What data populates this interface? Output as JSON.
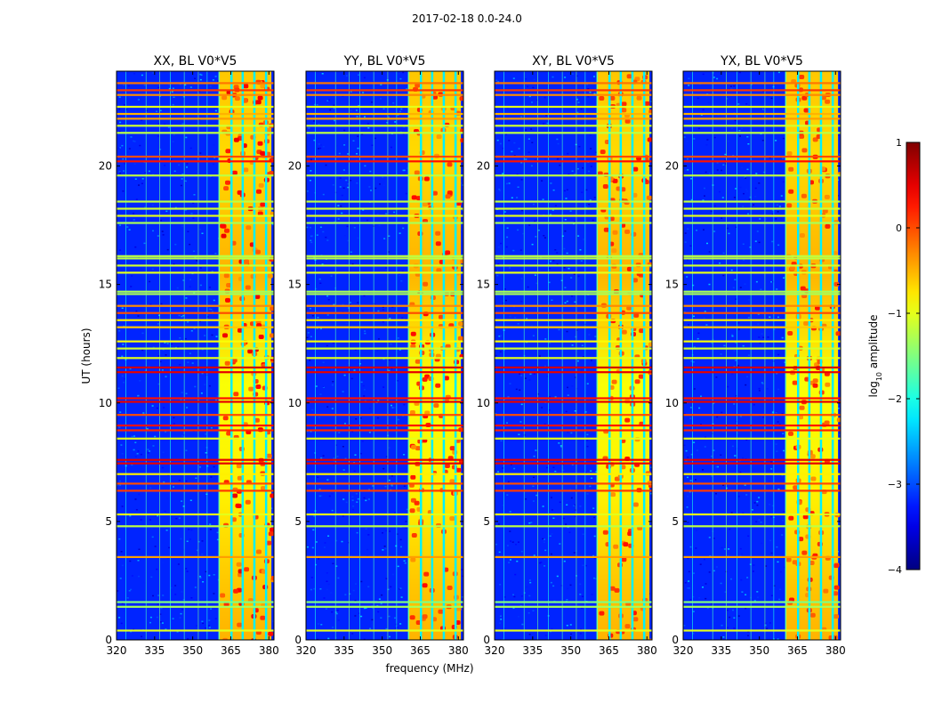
{
  "suptitle": "2017-02-18 0.0-24.0",
  "chart_data": {
    "type": "heatmap",
    "xlabel": "frequency (MHz)",
    "ylabel": "UT (hours)",
    "xlim": [
      320,
      382
    ],
    "ylim": [
      0,
      24
    ],
    "xticks": [
      320,
      335,
      350,
      365,
      380
    ],
    "xtick_labels": [
      "320",
      "335",
      "350",
      "365",
      "380"
    ],
    "yticks": [
      0,
      5,
      10,
      15,
      20
    ],
    "ytick_labels": [
      "0",
      "5",
      "10",
      "15",
      "20"
    ],
    "panels": [
      {
        "title": "XX, BL V0*V5",
        "intensity": 1.0
      },
      {
        "title": "YY, BL V0*V5",
        "intensity": 0.85
      },
      {
        "title": "XY, BL V0*V5",
        "intensity": 0.8
      },
      {
        "title": "YX, BL V0*V5",
        "intensity": 0.8
      }
    ],
    "signal_band_mhz": [
      360.5,
      381
    ],
    "signal_channel_gaps_mhz": [
      365.2,
      369.6,
      374.2,
      378.8
    ],
    "rfi_times_hours": [
      {
        "t": 0.4,
        "level": -1.0
      },
      {
        "t": 1.4,
        "level": -1.3
      },
      {
        "t": 1.6,
        "level": -1.5
      },
      {
        "t": 3.5,
        "level": -0.4
      },
      {
        "t": 4.8,
        "level": -1.2
      },
      {
        "t": 5.3,
        "level": -1.0
      },
      {
        "t": 6.3,
        "level": 0.1
      },
      {
        "t": 6.6,
        "level": 0.0
      },
      {
        "t": 7.0,
        "level": -0.8
      },
      {
        "t": 7.45,
        "level": 0.5
      },
      {
        "t": 7.6,
        "level": 0.5
      },
      {
        "t": 8.5,
        "level": -1.0
      },
      {
        "t": 8.85,
        "level": 0.2
      },
      {
        "t": 9.05,
        "level": 0.3
      },
      {
        "t": 9.5,
        "level": 0.0
      },
      {
        "t": 10.05,
        "level": 0.5
      },
      {
        "t": 10.2,
        "level": 0.3
      },
      {
        "t": 11.3,
        "level": 0.5
      },
      {
        "t": 11.5,
        "level": 0.6
      },
      {
        "t": 11.9,
        "level": -1.0
      },
      {
        "t": 12.3,
        "level": -1.1
      },
      {
        "t": 12.6,
        "level": -0.9
      },
      {
        "t": 13.2,
        "level": -0.6
      },
      {
        "t": 13.5,
        "level": -0.8
      },
      {
        "t": 13.8,
        "level": 0.0
      },
      {
        "t": 14.1,
        "level": -0.3
      },
      {
        "t": 14.6,
        "level": -1.3
      },
      {
        "t": 14.7,
        "level": -1.3
      },
      {
        "t": 15.5,
        "level": -1.0
      },
      {
        "t": 15.8,
        "level": -1.1
      },
      {
        "t": 16.1,
        "level": -1.2
      },
      {
        "t": 16.2,
        "level": -1.2
      },
      {
        "t": 17.6,
        "level": -1.3
      },
      {
        "t": 17.9,
        "level": -1.0
      },
      {
        "t": 18.2,
        "level": -1.1
      },
      {
        "t": 18.5,
        "level": -1.2
      },
      {
        "t": 19.6,
        "level": -1.2
      },
      {
        "t": 20.2,
        "level": 0.3
      },
      {
        "t": 20.4,
        "level": 0.0
      },
      {
        "t": 21.4,
        "level": -1.2
      },
      {
        "t": 21.7,
        "level": -1.1
      },
      {
        "t": 22.0,
        "level": -0.4
      },
      {
        "t": 22.2,
        "level": -0.5
      },
      {
        "t": 22.5,
        "level": -1.0
      },
      {
        "t": 23.0,
        "level": -0.3
      },
      {
        "t": 23.2,
        "level": 0.1
      },
      {
        "t": 23.5,
        "level": -0.2
      }
    ],
    "rfi_freqs_mhz": [
      323.5,
      331.5,
      336.8,
      341.0,
      346.5,
      352.0,
      355.5
    ],
    "colorbar": {
      "label": "log10 amplitude",
      "label_main": "log",
      "label_sub": "10",
      "label_rest": " amplitude",
      "min": -4,
      "max": 1,
      "ticks": [
        1,
        0,
        -1,
        -2,
        -3,
        -4
      ],
      "tick_labels": [
        "1",
        "0",
        "−1",
        "−2",
        "−3",
        "−4"
      ],
      "colormap": "jet"
    }
  }
}
